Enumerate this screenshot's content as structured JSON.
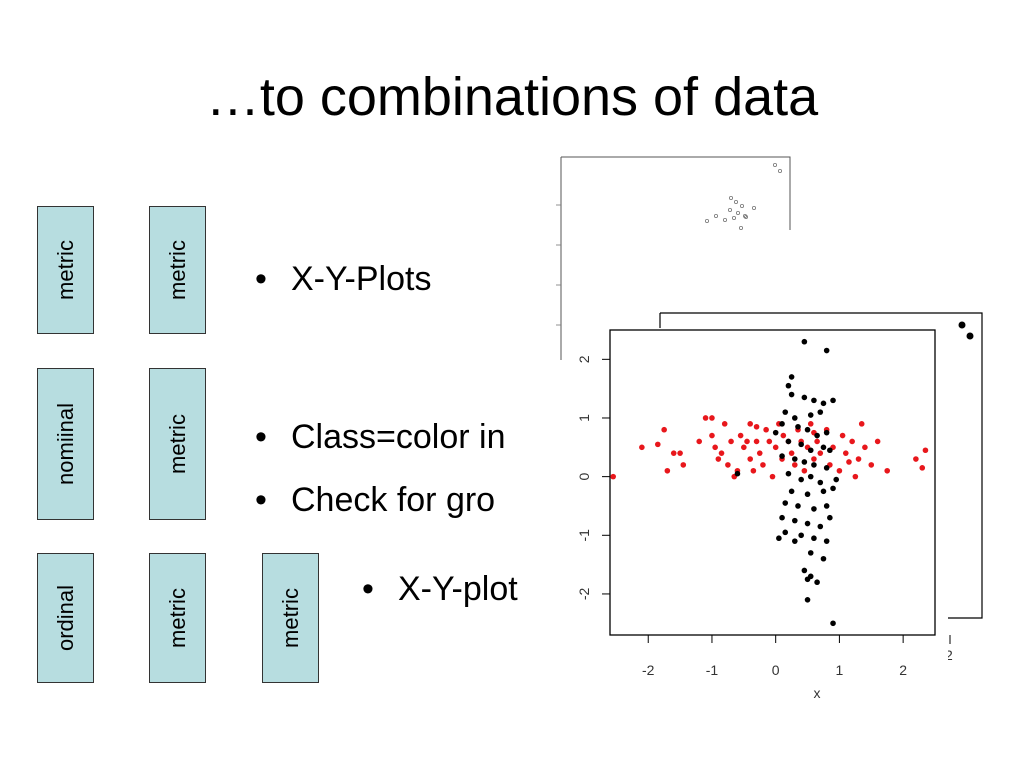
{
  "slide": {
    "title": "…to combinations of data",
    "boxes": [
      {
        "label": "metric"
      },
      {
        "label": "metric"
      },
      {
        "label": "nomiinal"
      },
      {
        "label": "metric"
      },
      {
        "label": "ordinal"
      },
      {
        "label": "metric"
      },
      {
        "label": "metric"
      }
    ],
    "bullets": [
      {
        "text": "X-Y-Plots"
      },
      {
        "text": "Class=color in"
      },
      {
        "text": "Check for gro"
      },
      {
        "text": "X-Y-plot"
      }
    ]
  },
  "colors": {
    "box_fill": "#b7dde0",
    "class_red": "#e8171c",
    "class_black": "#000000"
  },
  "chart_data": {
    "type": "scatter",
    "xlabel": "x",
    "xlim": [
      -2.6,
      2.5
    ],
    "ylim": [
      -2.7,
      2.5
    ],
    "x_ticks": [
      -2,
      -1,
      0,
      1,
      2
    ],
    "y_ticks": [
      -2,
      -1,
      0,
      1,
      2
    ],
    "back_plot_partial_tick": "2",
    "series": [
      {
        "color": "red",
        "points": [
          [
            -2.55,
            0.0
          ],
          [
            -2.1,
            0.5
          ],
          [
            -1.75,
            0.8
          ],
          [
            -1.7,
            0.1
          ],
          [
            -1.6,
            0.4
          ],
          [
            -1.5,
            0.4
          ],
          [
            -1.45,
            0.2
          ],
          [
            -1.2,
            0.6
          ],
          [
            -1.1,
            1.0
          ],
          [
            -1.0,
            1.0
          ],
          [
            -1.0,
            0.7
          ],
          [
            -0.95,
            0.5
          ],
          [
            -0.9,
            0.3
          ],
          [
            -0.85,
            0.4
          ],
          [
            -0.8,
            0.9
          ],
          [
            -0.75,
            0.2
          ],
          [
            -0.7,
            0.6
          ],
          [
            -0.65,
            0.0
          ],
          [
            -0.6,
            0.1
          ],
          [
            -0.55,
            0.7
          ],
          [
            -0.5,
            0.5
          ],
          [
            -0.45,
            0.6
          ],
          [
            -0.4,
            0.9
          ],
          [
            -0.4,
            0.3
          ],
          [
            -0.35,
            0.1
          ],
          [
            -0.3,
            0.6
          ],
          [
            -0.25,
            0.4
          ],
          [
            -0.2,
            0.2
          ],
          [
            -0.15,
            0.8
          ],
          [
            -0.1,
            0.6
          ],
          [
            -0.05,
            0.0
          ],
          [
            0.0,
            0.5
          ],
          [
            0.05,
            0.9
          ],
          [
            0.1,
            0.3
          ],
          [
            0.12,
            0.7
          ],
          [
            0.2,
            0.6
          ],
          [
            0.25,
            0.4
          ],
          [
            0.3,
            0.2
          ],
          [
            0.35,
            0.8
          ],
          [
            0.4,
            0.6
          ],
          [
            0.45,
            0.1
          ],
          [
            0.5,
            0.5
          ],
          [
            0.55,
            0.9
          ],
          [
            0.6,
            0.3
          ],
          [
            0.65,
            0.6
          ],
          [
            0.7,
            0.4
          ],
          [
            0.8,
            0.8
          ],
          [
            0.85,
            0.2
          ],
          [
            0.9,
            0.5
          ],
          [
            1.0,
            0.1
          ],
          [
            1.05,
            0.7
          ],
          [
            1.1,
            0.4
          ],
          [
            1.2,
            0.6
          ],
          [
            1.25,
            0.0
          ],
          [
            1.3,
            0.3
          ],
          [
            1.35,
            0.9
          ],
          [
            1.4,
            0.5
          ],
          [
            1.5,
            0.2
          ],
          [
            1.6,
            0.6
          ],
          [
            1.75,
            0.1
          ],
          [
            2.2,
            0.3
          ],
          [
            2.3,
            0.15
          ],
          [
            2.35,
            0.45
          ],
          [
            -1.85,
            0.55
          ],
          [
            -0.3,
            0.85
          ],
          [
            0.6,
            0.75
          ],
          [
            1.15,
            0.25
          ]
        ]
      },
      {
        "color": "black",
        "points": [
          [
            0.45,
            2.3
          ],
          [
            0.8,
            2.15
          ],
          [
            0.25,
            1.7
          ],
          [
            0.2,
            1.55
          ],
          [
            0.25,
            1.4
          ],
          [
            0.45,
            1.35
          ],
          [
            0.6,
            1.3
          ],
          [
            0.75,
            1.25
          ],
          [
            0.9,
            1.3
          ],
          [
            0.15,
            1.1
          ],
          [
            0.3,
            1.0
          ],
          [
            0.55,
            1.05
          ],
          [
            0.7,
            1.1
          ],
          [
            0.1,
            0.9
          ],
          [
            0.35,
            0.85
          ],
          [
            0.5,
            0.8
          ],
          [
            0.65,
            0.7
          ],
          [
            0.8,
            0.75
          ],
          [
            0.2,
            0.6
          ],
          [
            0.4,
            0.55
          ],
          [
            0.55,
            0.45
          ],
          [
            0.75,
            0.5
          ],
          [
            0.1,
            0.35
          ],
          [
            0.3,
            0.3
          ],
          [
            0.45,
            0.25
          ],
          [
            0.6,
            0.2
          ],
          [
            0.8,
            0.15
          ],
          [
            0.2,
            0.05
          ],
          [
            0.4,
            -0.05
          ],
          [
            0.55,
            0.0
          ],
          [
            0.7,
            -0.1
          ],
          [
            0.25,
            -0.25
          ],
          [
            0.5,
            -0.3
          ],
          [
            0.75,
            -0.25
          ],
          [
            0.9,
            -0.2
          ],
          [
            0.15,
            -0.45
          ],
          [
            0.35,
            -0.5
          ],
          [
            0.6,
            -0.55
          ],
          [
            0.8,
            -0.5
          ],
          [
            0.1,
            -0.7
          ],
          [
            0.3,
            -0.75
          ],
          [
            0.5,
            -0.8
          ],
          [
            0.7,
            -0.85
          ],
          [
            0.85,
            -0.7
          ],
          [
            0.15,
            -0.95
          ],
          [
            0.4,
            -1.0
          ],
          [
            0.6,
            -1.05
          ],
          [
            0.8,
            -1.1
          ],
          [
            0.05,
            -1.05
          ],
          [
            0.3,
            -1.1
          ],
          [
            0.55,
            -1.3
          ],
          [
            0.75,
            -1.4
          ],
          [
            0.45,
            -1.6
          ],
          [
            0.55,
            -1.7
          ],
          [
            0.5,
            -1.75
          ],
          [
            0.65,
            -1.8
          ],
          [
            0.5,
            -2.1
          ],
          [
            0.9,
            -2.5
          ],
          [
            0.0,
            0.75
          ],
          [
            -0.6,
            0.05
          ],
          [
            0.95,
            -0.05
          ],
          [
            0.85,
            0.45
          ]
        ]
      }
    ]
  }
}
